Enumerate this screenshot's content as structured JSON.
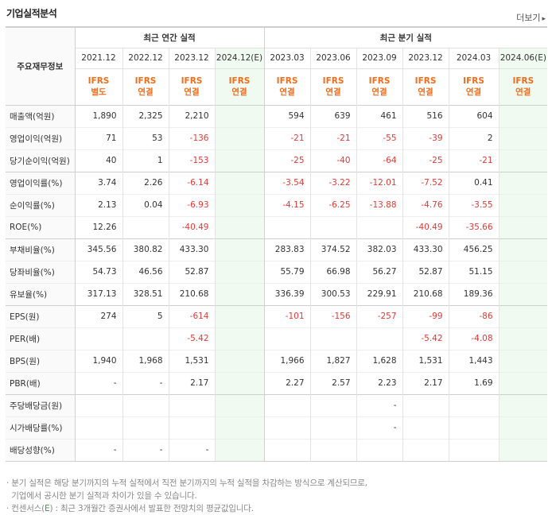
{
  "title": "기업실적분석",
  "more_label": "더보기",
  "header": {
    "row_label": "주요재무정보",
    "annual_group": "최근 연간 실적",
    "quarter_group": "최근 분기 실적",
    "annual_periods": [
      "2021.12",
      "2022.12",
      "2023.12",
      "2024.12(E)"
    ],
    "quarter_periods": [
      "2023.03",
      "2023.06",
      "2023.09",
      "2023.12",
      "2024.03",
      "2024.06(E)"
    ],
    "annual_types": [
      [
        "IFRS",
        "별도"
      ],
      [
        "IFRS",
        "연결"
      ],
      [
        "IFRS",
        "연결"
      ],
      [
        "IFRS",
        "연결"
      ]
    ],
    "quarter_types": [
      [
        "IFRS",
        "연결"
      ],
      [
        "IFRS",
        "연결"
      ],
      [
        "IFRS",
        "연결"
      ],
      [
        "IFRS",
        "연결"
      ],
      [
        "IFRS",
        "연결"
      ],
      [
        "IFRS",
        "연결"
      ]
    ]
  },
  "rows": [
    {
      "label": "매출액(억원)",
      "annual": [
        "1,890",
        "2,325",
        "2,210",
        ""
      ],
      "quarter": [
        "594",
        "639",
        "461",
        "516",
        "604",
        ""
      ]
    },
    {
      "label": "영업이익(억원)",
      "annual": [
        "71",
        "53",
        "-136",
        ""
      ],
      "quarter": [
        "-21",
        "-21",
        "-55",
        "-39",
        "2",
        ""
      ]
    },
    {
      "label": "당기순이익(억원)",
      "annual": [
        "40",
        "1",
        "-153",
        ""
      ],
      "quarter": [
        "-25",
        "-40",
        "-64",
        "-25",
        "-21",
        ""
      ]
    },
    {
      "label": "영업이익률(%)",
      "annual": [
        "3.74",
        "2.26",
        "-6.14",
        ""
      ],
      "quarter": [
        "-3.54",
        "-3.22",
        "-12.01",
        "-7.52",
        "0.41",
        ""
      ]
    },
    {
      "label": "순이익률(%)",
      "annual": [
        "2.13",
        "0.04",
        "-6.93",
        ""
      ],
      "quarter": [
        "-4.15",
        "-6.25",
        "-13.88",
        "-4.76",
        "-3.55",
        ""
      ]
    },
    {
      "label": "ROE(%)",
      "annual": [
        "12.26",
        "",
        "-40.49",
        ""
      ],
      "quarter": [
        "",
        "",
        "",
        "-40.49",
        "-35.66",
        ""
      ]
    },
    {
      "label": "부채비율(%)",
      "annual": [
        "345.56",
        "380.82",
        "433.30",
        ""
      ],
      "quarter": [
        "283.83",
        "374.52",
        "382.03",
        "433.30",
        "456.25",
        ""
      ]
    },
    {
      "label": "당좌비율(%)",
      "annual": [
        "54.73",
        "46.56",
        "52.87",
        ""
      ],
      "quarter": [
        "55.79",
        "66.98",
        "56.27",
        "52.87",
        "51.15",
        ""
      ]
    },
    {
      "label": "유보율(%)",
      "annual": [
        "317.13",
        "328.51",
        "210.68",
        ""
      ],
      "quarter": [
        "336.39",
        "300.53",
        "229.91",
        "210.68",
        "189.36",
        ""
      ]
    },
    {
      "label": "EPS(원)",
      "annual": [
        "274",
        "5",
        "-614",
        ""
      ],
      "quarter": [
        "-101",
        "-156",
        "-257",
        "-99",
        "-86",
        ""
      ]
    },
    {
      "label": "PER(배)",
      "annual": [
        "",
        "",
        "-5.42",
        ""
      ],
      "quarter": [
        "",
        "",
        "",
        "-5.42",
        "-4.08",
        ""
      ]
    },
    {
      "label": "BPS(원)",
      "annual": [
        "1,940",
        "1,968",
        "1,531",
        ""
      ],
      "quarter": [
        "1,966",
        "1,827",
        "1,628",
        "1,531",
        "1,443",
        ""
      ]
    },
    {
      "label": "PBR(배)",
      "annual": [
        "-",
        "-",
        "2.17",
        ""
      ],
      "quarter": [
        "2.27",
        "2.57",
        "2.23",
        "2.17",
        "1.69",
        ""
      ]
    },
    {
      "label": "주당배당금(원)",
      "annual": [
        "",
        "",
        "",
        ""
      ],
      "quarter": [
        "",
        "",
        "-",
        "",
        "",
        ""
      ]
    },
    {
      "label": "시가배당률(%)",
      "annual": [
        "",
        "",
        "",
        ""
      ],
      "quarter": [
        "",
        "",
        "-",
        "",
        "",
        ""
      ]
    },
    {
      "label": "배당성향(%)",
      "annual": [
        "-",
        "-",
        "-",
        ""
      ],
      "quarter": [
        "",
        "",
        "",
        "",
        "",
        ""
      ]
    }
  ],
  "notes": {
    "line1": "· 분기 실적은 해당 분기까지의 누적 실적에서 직전 분기까지의 누적 실적을 차감하는 방식으로 계산되므로,",
    "line2": "  기업에서 공시한 분기 실적과 차이가 있을 수 있습니다.",
    "line3_prefix": "· 컨센서스(",
    "line3_e": "E",
    "line3_suffix": ") : 최근 3개월간 증권사에서 발표한 전망치의 평균값입니다."
  }
}
